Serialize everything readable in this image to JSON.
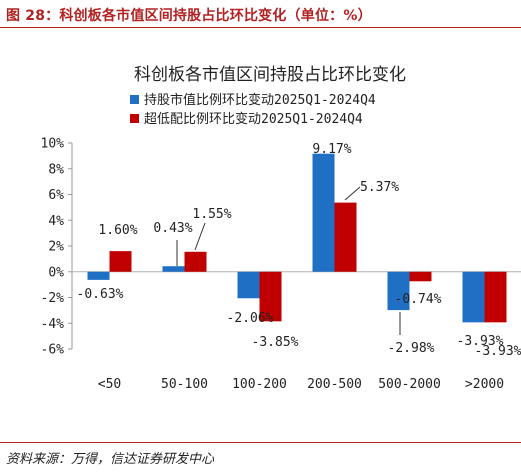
{
  "figure_caption": "图 28：科创板各市值区间持股占比环比变化（单位：%）",
  "source": "资料来源：万得，信达证券研发中心",
  "colors": {
    "caption": "#b22222",
    "series_1": "#1f6fc5",
    "series_2": "#c00000"
  },
  "chart_data": {
    "type": "bar",
    "title": "科创板各市值区间持股占比环比变化",
    "categories": [
      "<50",
      "50-100",
      "100-200",
      "200-500",
      "500-2000",
      ">2000"
    ],
    "series": [
      {
        "name": "持股市值比例环比变动2025Q1-2024Q4",
        "color": "#1f6fc5",
        "values": [
          -0.63,
          0.43,
          -2.06,
          9.17,
          -2.98,
          -3.93
        ],
        "labels": [
          "-0.63%",
          "0.43%",
          "-2.06%",
          "9.17%",
          "-2.98%",
          "-3.93%"
        ]
      },
      {
        "name": "超低配比例环比变动2025Q1-2024Q4",
        "color": "#c00000",
        "values": [
          1.6,
          1.55,
          -3.85,
          5.37,
          -0.74,
          -3.93
        ],
        "labels": [
          "1.60%",
          "1.55%",
          "-3.85%",
          "5.37%",
          "-0.74%",
          "-3.93%"
        ]
      }
    ],
    "y_ticks": [
      "10%",
      "8%",
      "6%",
      "4%",
      "2%",
      "0%",
      "-2%",
      "-4%",
      "-6%"
    ],
    "ylim": [
      -6,
      10
    ],
    "legend_position": "top-left",
    "grid": false
  }
}
